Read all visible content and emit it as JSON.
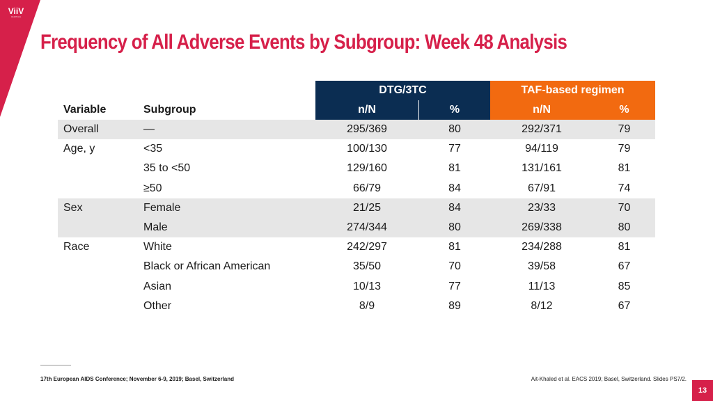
{
  "brand": {
    "logo_text": "ViiV",
    "logo_sub": "Healthcare",
    "accent_color": "#d6204a",
    "dtg_color": "#0b2d52",
    "taf_color": "#f26a10"
  },
  "slide": {
    "title": "Frequency of All Adverse Events by Subgroup: Week 48 Analysis",
    "page_number": "13"
  },
  "table": {
    "group_headers": [
      "DTG/3TC",
      "TAF-based regimen"
    ],
    "columns": {
      "variable": "Variable",
      "subgroup": "Subgroup",
      "dtg_nN": "n/N",
      "dtg_pct": "%",
      "taf_nN": "n/N",
      "taf_pct": "%"
    },
    "rows": [
      {
        "variable": "Overall",
        "subgroup": "—",
        "dtg_nN": "295/369",
        "dtg_pct": "80",
        "taf_nN": "292/371",
        "taf_pct": "79"
      },
      {
        "variable": "Age, y",
        "subgroup": "<35",
        "dtg_nN": "100/130",
        "dtg_pct": "77",
        "taf_nN": "94/119",
        "taf_pct": "79"
      },
      {
        "variable": "",
        "subgroup": "35 to <50",
        "dtg_nN": "129/160",
        "dtg_pct": "81",
        "taf_nN": "131/161",
        "taf_pct": "81"
      },
      {
        "variable": "",
        "subgroup": "≥50",
        "dtg_nN": "66/79",
        "dtg_pct": "84",
        "taf_nN": "67/91",
        "taf_pct": "74"
      },
      {
        "variable": "Sex",
        "subgroup": "Female",
        "dtg_nN": "21/25",
        "dtg_pct": "84",
        "taf_nN": "23/33",
        "taf_pct": "70"
      },
      {
        "variable": "",
        "subgroup": "Male",
        "dtg_nN": "274/344",
        "dtg_pct": "80",
        "taf_nN": "269/338",
        "taf_pct": "80"
      },
      {
        "variable": "Race",
        "subgroup": "White",
        "dtg_nN": "242/297",
        "dtg_pct": "81",
        "taf_nN": "234/288",
        "taf_pct": "81"
      },
      {
        "variable": "",
        "subgroup": "Black or African American",
        "dtg_nN": "35/50",
        "dtg_pct": "70",
        "taf_nN": "39/58",
        "taf_pct": "67"
      },
      {
        "variable": "",
        "subgroup": "Asian",
        "dtg_nN": "10/13",
        "dtg_pct": "77",
        "taf_nN": "11/13",
        "taf_pct": "85"
      },
      {
        "variable": "",
        "subgroup": "Other",
        "dtg_nN": "8/9",
        "dtg_pct": "89",
        "taf_nN": "8/12",
        "taf_pct": "67"
      }
    ]
  },
  "footer": {
    "conference": "17th European AIDS Conference; November 6-9, 2019; Basel, Switzerland",
    "citation": "Ait-Khaled et al. EACS 2019; Basel, Switzerland. Slides PS7/2."
  }
}
